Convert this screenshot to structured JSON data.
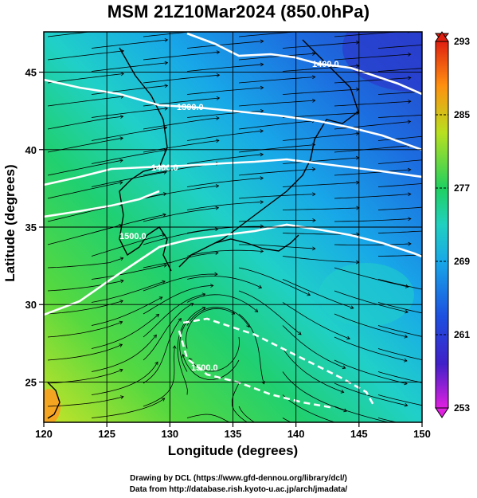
{
  "title": "MSM 21Z10Mar2024 (850.0hPa)",
  "xlabel": "Longitude (degrees)",
  "ylabel": "Latitude  (degrees)",
  "credits": [
    "Drawing by DCL (https://www.gfd-dennou.org/library/dcl/)",
    "Data from http://database.rish.kyoto-u.ac.jp/arch/jmadata/"
  ],
  "chart_data": {
    "type": "heatmap",
    "xlim": [
      120,
      150
    ],
    "ylim": [
      22.4,
      47.6
    ],
    "x_ticks": [
      120,
      125,
      130,
      135,
      140,
      145,
      150
    ],
    "y_ticks": [
      25,
      30,
      35,
      40,
      45
    ],
    "grid": true,
    "colorbar": {
      "min": 253,
      "max": 293,
      "ticks": [
        253,
        261,
        269,
        277,
        285,
        293
      ],
      "colors": [
        "#e020e0",
        "#3030d0",
        "#1f6fe0",
        "#20c8d8",
        "#20d060",
        "#b8e020",
        "#ff9010",
        "#e02010"
      ]
    },
    "contours": [
      {
        "label": "1400.0",
        "level": 1400.0
      },
      {
        "label": "1300.0",
        "level": 1300.0
      },
      {
        "label": "1400.0",
        "level": 1400.0
      },
      {
        "label": "1500.0",
        "level": 1500.0
      },
      {
        "label": "1500.0",
        "level": 1500.0
      }
    ]
  }
}
